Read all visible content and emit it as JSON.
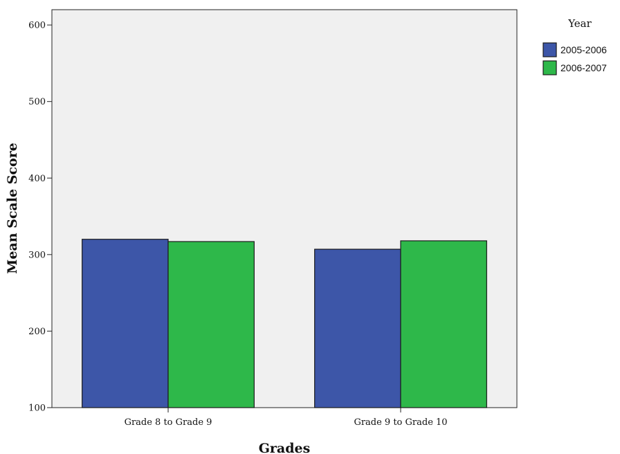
{
  "chart_data": {
    "type": "bar",
    "title": "",
    "xlabel": "Grades",
    "ylabel": "Mean Scale Score",
    "categories": [
      "Grade 8 to Grade 9",
      "Grade 9 to Grade 10"
    ],
    "series": [
      {
        "name": "2005-2006",
        "values": [
          320,
          307
        ],
        "color": "#3d56a8"
      },
      {
        "name": "2006-2007",
        "values": [
          317,
          318
        ],
        "color": "#2eb84a"
      }
    ],
    "ylim": [
      100,
      620
    ],
    "yticks": [
      100,
      200,
      300,
      400,
      500,
      600
    ],
    "legend": {
      "title": "Year",
      "placement": "top-right"
    },
    "grid": false,
    "plot_background": "#f0f0f0"
  }
}
